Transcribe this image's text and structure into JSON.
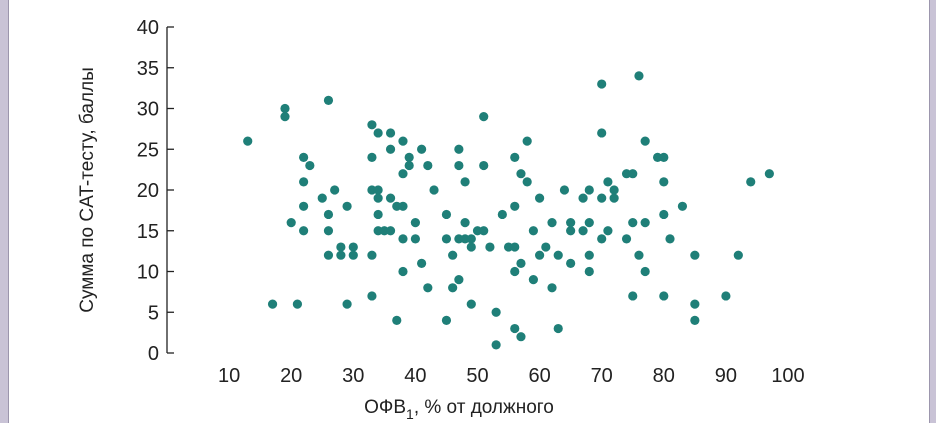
{
  "chart_data": {
    "type": "scatter",
    "xlabel": "ОФВ",
    "xlabel_sub": "1",
    "xlabel_rest": ", % от должного",
    "ylabel": "Сумма по CAT-тесту, баллы",
    "xlim": [
      0,
      100
    ],
    "ylim": [
      0,
      40
    ],
    "xticks": [
      10,
      20,
      30,
      40,
      50,
      60,
      70,
      80,
      90,
      100
    ],
    "yticks": [
      0,
      5,
      10,
      15,
      20,
      25,
      30,
      35,
      40
    ],
    "grid": false,
    "colors": {
      "point": "#1f7f78",
      "axis": "#222222"
    },
    "points": [
      [
        13,
        26
      ],
      [
        17,
        6
      ],
      [
        19,
        30
      ],
      [
        19,
        29
      ],
      [
        20,
        16
      ],
      [
        21,
        6
      ],
      [
        22,
        24
      ],
      [
        22,
        21
      ],
      [
        22,
        18
      ],
      [
        22,
        15
      ],
      [
        23,
        23
      ],
      [
        25,
        19
      ],
      [
        26,
        31
      ],
      [
        26,
        17
      ],
      [
        26,
        15
      ],
      [
        26,
        12
      ],
      [
        27,
        20
      ],
      [
        28,
        12
      ],
      [
        28,
        13
      ],
      [
        29,
        18
      ],
      [
        29,
        6
      ],
      [
        30,
        13
      ],
      [
        30,
        12
      ],
      [
        33,
        24
      ],
      [
        33,
        28
      ],
      [
        33,
        20
      ],
      [
        33,
        12
      ],
      [
        33,
        7
      ],
      [
        34,
        27
      ],
      [
        34,
        20
      ],
      [
        34,
        19
      ],
      [
        34,
        17
      ],
      [
        34,
        15
      ],
      [
        35,
        15
      ],
      [
        36,
        27
      ],
      [
        36,
        25
      ],
      [
        36,
        19
      ],
      [
        36,
        15
      ],
      [
        37,
        18
      ],
      [
        37,
        4
      ],
      [
        38,
        26
      ],
      [
        38,
        22
      ],
      [
        38,
        18
      ],
      [
        38,
        14
      ],
      [
        38,
        10
      ],
      [
        39,
        24
      ],
      [
        39,
        23
      ],
      [
        40,
        16
      ],
      [
        40,
        14
      ],
      [
        41,
        25
      ],
      [
        41,
        11
      ],
      [
        42,
        23
      ],
      [
        42,
        8
      ],
      [
        43,
        20
      ],
      [
        45,
        17
      ],
      [
        45,
        14
      ],
      [
        45,
        4
      ],
      [
        46,
        12
      ],
      [
        46,
        8
      ],
      [
        47,
        25
      ],
      [
        47,
        23
      ],
      [
        47,
        14
      ],
      [
        47,
        9
      ],
      [
        48,
        21
      ],
      [
        48,
        16
      ],
      [
        48,
        14
      ],
      [
        49,
        14
      ],
      [
        49,
        13
      ],
      [
        49,
        6
      ],
      [
        50,
        15
      ],
      [
        51,
        29
      ],
      [
        51,
        23
      ],
      [
        51,
        15
      ],
      [
        52,
        13
      ],
      [
        53,
        5
      ],
      [
        53,
        1
      ],
      [
        54,
        17
      ],
      [
        55,
        13
      ],
      [
        56,
        24
      ],
      [
        56,
        18
      ],
      [
        56,
        13
      ],
      [
        56,
        10
      ],
      [
        56,
        3
      ],
      [
        57,
        22
      ],
      [
        57,
        11
      ],
      [
        57,
        2
      ],
      [
        58,
        26
      ],
      [
        58,
        21
      ],
      [
        59,
        15
      ],
      [
        59,
        9
      ],
      [
        60,
        19
      ],
      [
        60,
        12
      ],
      [
        61,
        13
      ],
      [
        62,
        16
      ],
      [
        62,
        8
      ],
      [
        63,
        12
      ],
      [
        63,
        3
      ],
      [
        64,
        20
      ],
      [
        65,
        16
      ],
      [
        65,
        15
      ],
      [
        65,
        11
      ],
      [
        67,
        19
      ],
      [
        67,
        15
      ],
      [
        68,
        20
      ],
      [
        68,
        16
      ],
      [
        68,
        12
      ],
      [
        68,
        10
      ],
      [
        70,
        33
      ],
      [
        70,
        27
      ],
      [
        70,
        19
      ],
      [
        70,
        14
      ],
      [
        71,
        21
      ],
      [
        71,
        15
      ],
      [
        72,
        20
      ],
      [
        72,
        19
      ],
      [
        74,
        22
      ],
      [
        74,
        14
      ],
      [
        75,
        22
      ],
      [
        75,
        16
      ],
      [
        75,
        7
      ],
      [
        76,
        34
      ],
      [
        76,
        12
      ],
      [
        77,
        26
      ],
      [
        77,
        16
      ],
      [
        77,
        10
      ],
      [
        79,
        24
      ],
      [
        80,
        24
      ],
      [
        80,
        21
      ],
      [
        80,
        17
      ],
      [
        80,
        7
      ],
      [
        81,
        14
      ],
      [
        83,
        18
      ],
      [
        85,
        12
      ],
      [
        85,
        6
      ],
      [
        85,
        4
      ],
      [
        90,
        7
      ],
      [
        92,
        12
      ],
      [
        94,
        21
      ],
      [
        97,
        22
      ]
    ]
  }
}
